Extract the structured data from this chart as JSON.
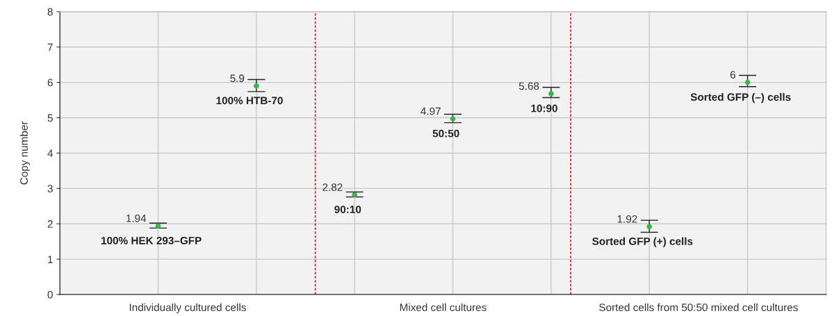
{
  "chart_data": {
    "type": "scatter",
    "ylabel": "Copy number",
    "categories": [
      "100% HEK 293–GFP",
      "100% HTB-70",
      "90:10",
      "50:50",
      "10:90",
      "Sorted GFP (+) cells",
      "Sorted GFP (–) cells"
    ],
    "values": [
      1.94,
      5.9,
      2.82,
      4.97,
      5.68,
      1.92,
      6
    ],
    "errors": [
      [
        1.88,
        2.02
      ],
      [
        5.74,
        6.08
      ],
      [
        2.76,
        2.9
      ],
      [
        4.86,
        5.1
      ],
      [
        5.57,
        5.86
      ],
      [
        1.76,
        2.1
      ],
      [
        5.88,
        6.2
      ]
    ],
    "color": "#3cb44b",
    "marker": "circle",
    "data_labels": true,
    "ylim": [
      0,
      8
    ],
    "yticks": [
      0,
      1,
      2,
      3,
      4,
      5,
      6,
      7,
      8
    ],
    "grid": true,
    "tick_labels": "y",
    "annotations": [
      "Individually cultured cells",
      "Mixed cell cultures",
      "Sorted cells from 50:50 mixed cell cultures"
    ]
  }
}
